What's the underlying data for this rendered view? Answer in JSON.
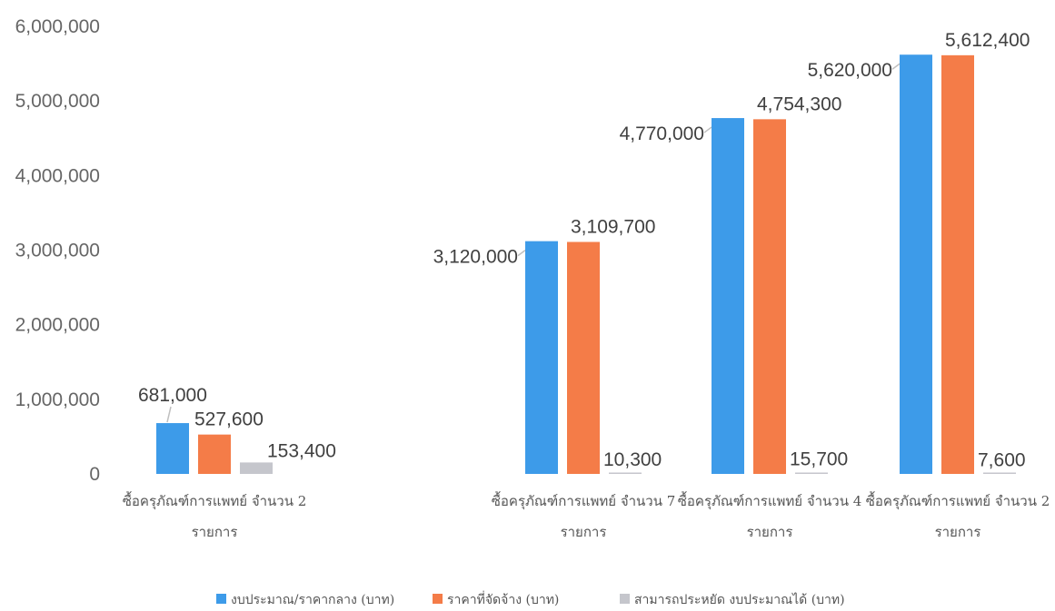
{
  "chart_data": {
    "type": "bar",
    "title": "",
    "xlabel": "",
    "ylabel": "",
    "ylim": [
      0,
      6000000
    ],
    "yticks": [
      {
        "value": 0,
        "label": "0"
      },
      {
        "value": 1000000,
        "label": "1,000,000"
      },
      {
        "value": 2000000,
        "label": "2,000,000"
      },
      {
        "value": 3000000,
        "label": "3,000,000"
      },
      {
        "value": 4000000,
        "label": "4,000,000"
      },
      {
        "value": 5000000,
        "label": "5,000,000"
      },
      {
        "value": 6000000,
        "label": "6,000,000"
      }
    ],
    "grid": false,
    "legend_position": "bottom",
    "categories": [
      {
        "line1": "ซื้อครุภัณฑ์การแพทย์ จำนวน 2",
        "line2": "รายการ"
      },
      {
        "line1": "",
        "line2": ""
      },
      {
        "line1": "ซื้อครุภัณฑ์การแพทย์ จำนวน 7",
        "line2": "รายการ"
      },
      {
        "line1": "ซื้อครุภัณฑ์การแพทย์ จำนวน 4",
        "line2": "รายการ"
      },
      {
        "line1": "ซื้อครุภัณฑ์การแพทย์ จำนวน 2",
        "line2": "รายการ"
      }
    ],
    "series": [
      {
        "name": "งบประมาณ/ราคากลาง (บาท)",
        "color": "#3d9be9",
        "values": [
          681000,
          null,
          3120000,
          4770000,
          5620000
        ],
        "labels": [
          "681,000",
          "",
          "3,120,000",
          "4,770,000",
          "5,620,000"
        ]
      },
      {
        "name": "ราคาที่จัดจ้าง (บาท)",
        "color": "#f47c48",
        "values": [
          527600,
          null,
          3109700,
          4754300,
          5612400
        ],
        "labels": [
          "527,600",
          "",
          "3,109,700",
          "4,754,300",
          "5,612,400"
        ]
      },
      {
        "name": "สามารถประหยัด งบประมาณได้ (บาท)",
        "color": "#c5c6cc",
        "values": [
          153400,
          null,
          10300,
          15700,
          7600
        ],
        "labels": [
          "153,400",
          "",
          "10,300",
          "15,700",
          "7,600"
        ]
      }
    ]
  }
}
